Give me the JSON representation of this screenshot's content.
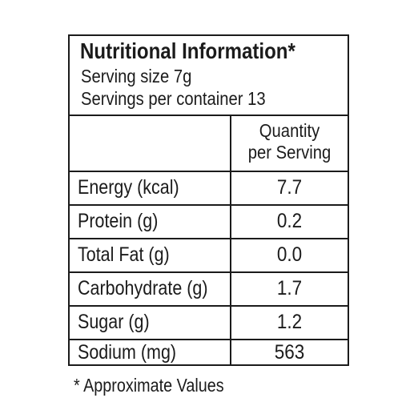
{
  "label": {
    "title": "Nutritional Information*",
    "serving_size": "Serving size 7g",
    "servings_per_container": "Servings per container 13",
    "column_header_line1": "Quantity",
    "column_header_line2": "per Serving",
    "rows": [
      {
        "nutrient": "Energy (kcal)",
        "value": "7.7"
      },
      {
        "nutrient": "Protein (g)",
        "value": "0.2"
      },
      {
        "nutrient": "Total Fat (g)",
        "value": "0.0"
      },
      {
        "nutrient": "Carbohydrate (g)",
        "value": "1.7"
      },
      {
        "nutrient": "Sugar (g)",
        "value": "1.2"
      },
      {
        "nutrient": "Sodium (mg)",
        "value": "563"
      }
    ],
    "footnote": "* Approximate Values"
  }
}
